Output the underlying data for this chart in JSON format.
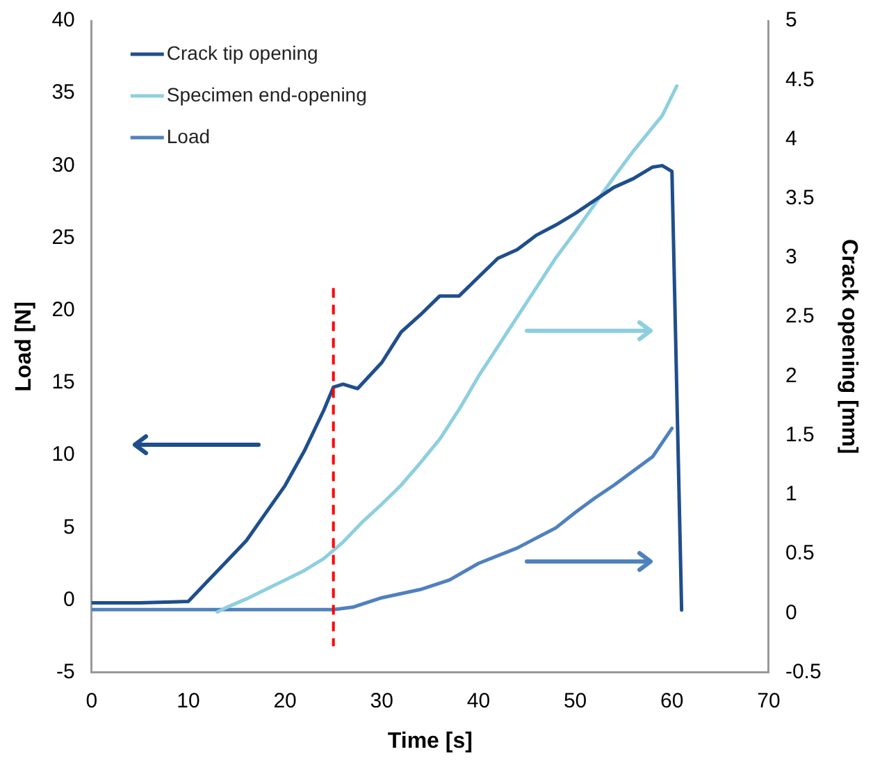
{
  "chart_data": {
    "type": "line",
    "xlabel": "Time [s]",
    "ylabel": "Load [N]",
    "y2label": "Crack opening [mm]",
    "xlim": [
      0,
      70
    ],
    "xticks": [
      0,
      10,
      20,
      30,
      40,
      50,
      60,
      70
    ],
    "ylim": [
      -5,
      40
    ],
    "yticks": [
      -5,
      0,
      5,
      10,
      15,
      20,
      25,
      30,
      35,
      40
    ],
    "y2lim": [
      -0.5,
      5
    ],
    "y2ticks": [
      -0.5,
      0,
      0.5,
      1,
      1.5,
      2,
      2.5,
      3,
      3.5,
      4,
      4.5,
      5
    ],
    "legend": "top left",
    "grid": false,
    "marker": "none",
    "ref_lines": [
      {
        "axis": "x",
        "value": 25,
        "color": "#ff0000",
        "line_style": "dashed"
      }
    ],
    "series": [
      {
        "name": "Crack tip opening",
        "color": "#1f4e8c",
        "x": [
          0,
          5,
          10,
          12,
          14,
          16,
          18,
          20,
          22,
          24,
          25,
          26,
          27.5,
          30,
          32,
          34,
          36,
          38,
          40,
          42,
          44,
          46,
          48,
          50,
          52,
          54,
          56,
          58,
          59,
          60,
          61
        ],
        "values": [
          -0.2,
          -0.2,
          -0.1,
          1.3,
          2.7,
          4.1,
          6,
          7.9,
          10.3,
          13.1,
          14.7,
          14.9,
          14.6,
          16.4,
          18.5,
          19.7,
          21,
          21,
          22.3,
          23.6,
          24.2,
          25.2,
          25.9,
          26.7,
          27.6,
          28.5,
          29.1,
          29.9,
          30,
          29.6,
          -0.7
        ]
      },
      {
        "name": "Specimen end-opening",
        "color": "#8ecfdf",
        "axis": "y2",
        "x": [
          13,
          14,
          16,
          18,
          20,
          22,
          24,
          26,
          28,
          30,
          32,
          34,
          36,
          38,
          40,
          42,
          44,
          46,
          48,
          50,
          52,
          54,
          56,
          58,
          59,
          60.5
        ],
        "values": [
          0.01,
          0.05,
          0.12,
          0.2,
          0.28,
          0.36,
          0.46,
          0.6,
          0.77,
          0.92,
          1.08,
          1.27,
          1.47,
          1.72,
          2,
          2.25,
          2.5,
          2.75,
          3,
          3.22,
          3.45,
          3.68,
          3.9,
          4.1,
          4.2,
          4.45
        ]
      },
      {
        "name": "Load",
        "color": "#4f81bd",
        "axis": "y2",
        "x": [
          0,
          5,
          10,
          15,
          20,
          25,
          27,
          30,
          34,
          37,
          40,
          44,
          48,
          50,
          52,
          54,
          56,
          58,
          60
        ],
        "values": [
          0.03,
          0.03,
          0.03,
          0.03,
          0.03,
          0.03,
          0.05,
          0.13,
          0.2,
          0.28,
          0.42,
          0.55,
          0.72,
          0.85,
          0.97,
          1.08,
          1.2,
          1.32,
          1.56
        ]
      }
    ]
  }
}
